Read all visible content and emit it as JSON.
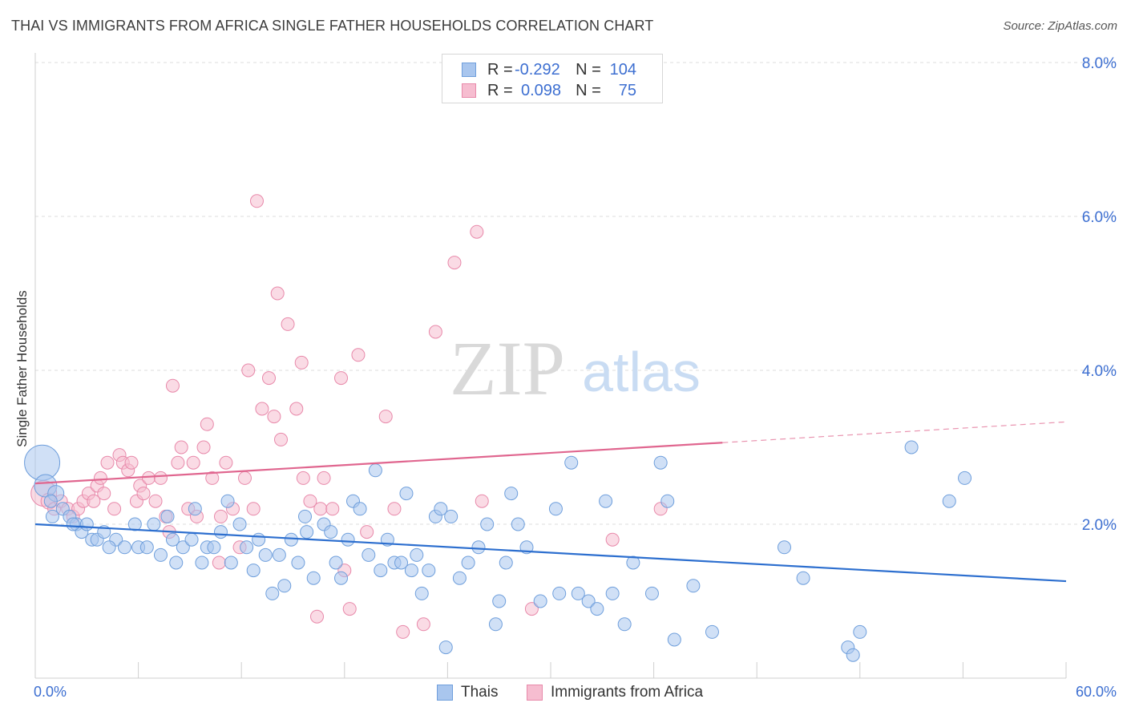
{
  "title": "THAI VS IMMIGRANTS FROM AFRICA SINGLE FATHER HOUSEHOLDS CORRELATION CHART",
  "source": "Source: ZipAtlas.com",
  "watermark": {
    "zip": "ZIP",
    "atlas": "atlas"
  },
  "legend_top": {
    "rows": [
      {
        "r_label": "R =",
        "r_value": "-0.292",
        "n_label": "N =",
        "n_value": "104"
      },
      {
        "r_label": "R =",
        "r_value": "0.098",
        "n_label": "N =",
        "n_value": "75"
      }
    ]
  },
  "legend_bottom": {
    "series1": "Thais",
    "series2": "Immigrants from Africa"
  },
  "colors": {
    "thai_fill": "#a9c6ee",
    "thai_stroke": "#6f9fdc",
    "thai_line": "#2d6fcf",
    "africa_fill": "#f6bdd0",
    "africa_stroke": "#e889aa",
    "africa_line": "#e0668f",
    "tick_label": "#3d6fd1",
    "grid": "#dcdcdc"
  },
  "chart_data": {
    "type": "scatter",
    "title": "THAI VS IMMIGRANTS FROM AFRICA SINGLE FATHER HOUSEHOLDS CORRELATION CHART",
    "xlabel": "",
    "ylabel": "Single Father Households",
    "xlim": [
      0,
      60
    ],
    "ylim": [
      0,
      8.0
    ],
    "x_tick_labels": [
      "0.0%",
      "60.0%"
    ],
    "y_ticks": [
      2.0,
      4.0,
      6.0,
      8.0
    ],
    "y_tick_labels": [
      "2.0%",
      "4.0%",
      "6.0%",
      "8.0%"
    ],
    "grid": true,
    "legend_position": "top-center",
    "series": [
      {
        "name": "Thais",
        "R": -0.292,
        "N": 104,
        "trend": {
          "x": [
            0,
            60
          ],
          "y": [
            2.0,
            1.26
          ]
        },
        "points": [
          [
            0.4,
            2.8,
            22
          ],
          [
            0.6,
            2.5,
            14
          ],
          [
            1.2,
            2.4,
            10
          ],
          [
            0.9,
            2.3,
            8
          ],
          [
            1.6,
            2.2,
            8
          ],
          [
            2.0,
            2.1,
            8
          ],
          [
            2.4,
            2.0,
            8
          ],
          [
            2.7,
            1.9,
            8
          ],
          [
            3.0,
            2.0,
            8
          ],
          [
            3.3,
            1.8,
            8
          ],
          [
            3.6,
            1.8,
            8
          ],
          [
            4.0,
            1.9,
            8
          ],
          [
            4.7,
            1.8,
            8
          ],
          [
            5.2,
            1.7,
            8
          ],
          [
            5.8,
            2.0,
            8
          ],
          [
            6.0,
            1.7,
            8
          ],
          [
            6.5,
            1.7,
            8
          ],
          [
            6.9,
            2.0,
            8
          ],
          [
            7.3,
            1.6,
            8
          ],
          [
            7.7,
            2.1,
            8
          ],
          [
            8.0,
            1.8,
            8
          ],
          [
            8.2,
            1.5,
            8
          ],
          [
            8.6,
            1.7,
            8
          ],
          [
            9.1,
            1.8,
            8
          ],
          [
            9.3,
            2.2,
            8
          ],
          [
            9.7,
            1.5,
            8
          ],
          [
            10.0,
            1.7,
            8
          ],
          [
            10.4,
            1.7,
            8
          ],
          [
            10.8,
            1.9,
            8
          ],
          [
            11.2,
            2.3,
            8
          ],
          [
            11.4,
            1.5,
            8
          ],
          [
            11.9,
            2.0,
            8
          ],
          [
            12.3,
            1.7,
            8
          ],
          [
            12.7,
            1.4,
            8
          ],
          [
            13.0,
            1.8,
            8
          ],
          [
            13.4,
            1.6,
            8
          ],
          [
            13.8,
            1.1,
            8
          ],
          [
            14.2,
            1.6,
            8
          ],
          [
            14.5,
            1.2,
            8
          ],
          [
            14.9,
            1.8,
            8
          ],
          [
            15.3,
            1.5,
            8
          ],
          [
            15.7,
            2.1,
            8
          ],
          [
            15.8,
            1.9,
            8
          ],
          [
            16.2,
            1.3,
            8
          ],
          [
            16.8,
            2.0,
            8
          ],
          [
            17.2,
            1.9,
            8
          ],
          [
            17.5,
            1.5,
            8
          ],
          [
            17.8,
            1.3,
            8
          ],
          [
            18.2,
            1.8,
            8
          ],
          [
            18.5,
            2.3,
            8
          ],
          [
            18.9,
            2.2,
            8
          ],
          [
            19.4,
            1.6,
            8
          ],
          [
            19.8,
            2.7,
            8
          ],
          [
            20.1,
            1.4,
            8
          ],
          [
            20.5,
            1.8,
            8
          ],
          [
            20.9,
            1.5,
            8
          ],
          [
            21.3,
            1.5,
            8
          ],
          [
            21.6,
            2.4,
            8
          ],
          [
            21.9,
            1.4,
            8
          ],
          [
            22.2,
            1.6,
            8
          ],
          [
            22.5,
            1.1,
            8
          ],
          [
            22.9,
            1.4,
            8
          ],
          [
            23.3,
            2.1,
            8
          ],
          [
            23.6,
            2.2,
            8
          ],
          [
            23.9,
            0.4,
            8
          ],
          [
            24.2,
            2.1,
            8
          ],
          [
            24.7,
            1.3,
            8
          ],
          [
            25.2,
            1.5,
            8
          ],
          [
            25.8,
            1.7,
            8
          ],
          [
            26.3,
            2.0,
            8
          ],
          [
            26.8,
            0.7,
            8
          ],
          [
            27.0,
            1.0,
            8
          ],
          [
            27.4,
            1.5,
            8
          ],
          [
            27.7,
            2.4,
            8
          ],
          [
            28.1,
            2.0,
            8
          ],
          [
            28.6,
            1.7,
            8
          ],
          [
            29.4,
            1.0,
            8
          ],
          [
            30.3,
            2.2,
            8
          ],
          [
            30.5,
            1.1,
            8
          ],
          [
            31.2,
            2.8,
            8
          ],
          [
            31.6,
            1.1,
            8
          ],
          [
            32.2,
            1.0,
            8
          ],
          [
            32.7,
            0.9,
            8
          ],
          [
            33.2,
            2.3,
            8
          ],
          [
            33.6,
            1.1,
            8
          ],
          [
            34.3,
            0.7,
            8
          ],
          [
            34.8,
            1.5,
            8
          ],
          [
            35.9,
            1.1,
            8
          ],
          [
            36.4,
            2.8,
            8
          ],
          [
            36.8,
            2.3,
            8
          ],
          [
            37.2,
            0.5,
            8
          ],
          [
            38.3,
            1.2,
            8
          ],
          [
            39.4,
            0.6,
            8
          ],
          [
            43.6,
            1.7,
            8
          ],
          [
            44.7,
            1.3,
            8
          ],
          [
            47.3,
            0.4,
            8
          ],
          [
            47.6,
            0.3,
            8
          ],
          [
            48.0,
            0.6,
            8
          ],
          [
            51.0,
            3.0,
            8
          ],
          [
            53.2,
            2.3,
            8
          ],
          [
            54.1,
            2.6,
            8
          ],
          [
            1.0,
            2.1,
            8
          ],
          [
            4.3,
            1.7,
            8
          ],
          [
            2.2,
            2.0,
            8
          ]
        ]
      },
      {
        "name": "Immigrants from Africa",
        "R": 0.098,
        "N": 75,
        "trend": {
          "x": [
            0,
            40
          ],
          "y": [
            2.53,
            3.06
          ]
        },
        "trend_dashed": {
          "x": [
            40,
            60
          ],
          "y": [
            3.06,
            3.33
          ]
        },
        "points": [
          [
            0.5,
            2.4,
            16
          ],
          [
            0.8,
            2.3,
            10
          ],
          [
            1.1,
            2.2,
            8
          ],
          [
            1.5,
            2.3,
            8
          ],
          [
            1.9,
            2.2,
            8
          ],
          [
            2.2,
            2.1,
            8
          ],
          [
            2.5,
            2.2,
            8
          ],
          [
            2.8,
            2.3,
            8
          ],
          [
            3.1,
            2.4,
            8
          ],
          [
            3.4,
            2.3,
            8
          ],
          [
            3.6,
            2.5,
            8
          ],
          [
            3.8,
            2.6,
            8
          ],
          [
            4.0,
            2.4,
            8
          ],
          [
            4.2,
            2.8,
            8
          ],
          [
            4.6,
            2.2,
            8
          ],
          [
            4.9,
            2.9,
            8
          ],
          [
            5.1,
            2.8,
            8
          ],
          [
            5.4,
            2.7,
            8
          ],
          [
            5.6,
            2.8,
            8
          ],
          [
            5.9,
            2.3,
            8
          ],
          [
            6.1,
            2.5,
            8
          ],
          [
            6.3,
            2.4,
            8
          ],
          [
            6.6,
            2.6,
            8
          ],
          [
            7.0,
            2.3,
            8
          ],
          [
            7.3,
            2.6,
            8
          ],
          [
            7.6,
            2.1,
            8
          ],
          [
            7.8,
            1.9,
            8
          ],
          [
            8.0,
            3.8,
            8
          ],
          [
            8.3,
            2.8,
            8
          ],
          [
            8.5,
            3.0,
            8
          ],
          [
            8.9,
            2.2,
            8
          ],
          [
            9.2,
            2.8,
            8
          ],
          [
            9.4,
            2.1,
            8
          ],
          [
            9.8,
            3.0,
            8
          ],
          [
            10.0,
            3.3,
            8
          ],
          [
            10.3,
            2.6,
            8
          ],
          [
            10.7,
            1.5,
            8
          ],
          [
            10.8,
            2.1,
            8
          ],
          [
            11.1,
            2.8,
            8
          ],
          [
            11.5,
            2.2,
            8
          ],
          [
            11.9,
            1.7,
            8
          ],
          [
            12.2,
            2.6,
            8
          ],
          [
            12.4,
            4.0,
            8
          ],
          [
            12.7,
            2.2,
            8
          ],
          [
            12.9,
            6.2,
            8
          ],
          [
            13.2,
            3.5,
            8
          ],
          [
            13.6,
            3.9,
            8
          ],
          [
            13.9,
            3.4,
            8
          ],
          [
            14.1,
            5.0,
            8
          ],
          [
            14.3,
            3.1,
            8
          ],
          [
            14.7,
            4.6,
            8
          ],
          [
            15.2,
            3.5,
            8
          ],
          [
            15.5,
            4.1,
            8
          ],
          [
            15.6,
            2.6,
            8
          ],
          [
            16.0,
            2.3,
            8
          ],
          [
            16.4,
            0.8,
            8
          ],
          [
            16.6,
            2.2,
            8
          ],
          [
            16.8,
            2.6,
            8
          ],
          [
            17.3,
            2.2,
            8
          ],
          [
            17.8,
            3.9,
            8
          ],
          [
            18.0,
            1.4,
            8
          ],
          [
            18.3,
            0.9,
            8
          ],
          [
            18.8,
            4.2,
            8
          ],
          [
            19.3,
            1.9,
            8
          ],
          [
            20.4,
            3.4,
            8
          ],
          [
            20.9,
            2.2,
            8
          ],
          [
            21.4,
            0.6,
            8
          ],
          [
            22.6,
            0.7,
            8
          ],
          [
            23.3,
            4.5,
            8
          ],
          [
            24.4,
            5.4,
            8
          ],
          [
            25.7,
            5.8,
            8
          ],
          [
            26.0,
            2.3,
            8
          ],
          [
            28.9,
            0.9,
            8
          ],
          [
            33.6,
            1.8,
            8
          ],
          [
            36.4,
            2.2,
            8
          ]
        ]
      }
    ]
  }
}
